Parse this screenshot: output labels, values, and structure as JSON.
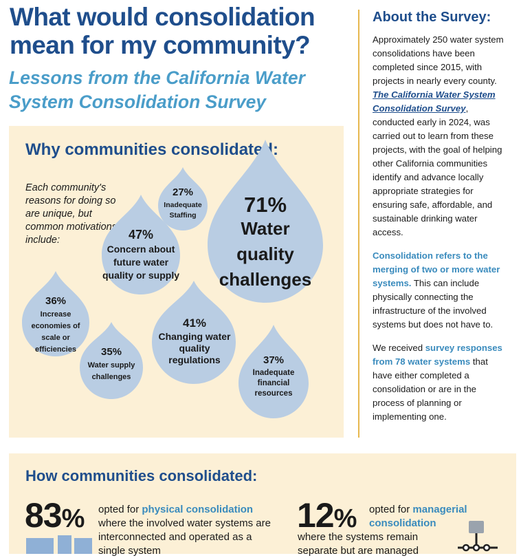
{
  "header": {
    "title": "What would consolidation mean for my community?",
    "subtitle": "Lessons from the California Water System Consolidation Survey"
  },
  "about": {
    "title": "About the Survey:",
    "p1_pre": "Approximately 250 water system consolidations have been completed since 2015, with projects in nearly every county.",
    "p1_link": "The California Water System Consolidation Survey",
    "p1_post": ", conducted early in 2024, was carried out to learn from these projects, with the goal of helping other California communities identify and advance locally appropriate strategies for ensuring safe, affordable, and sustainable drinking water access.",
    "p2_hl": "Consolidation refers to the merging of two or more water systems.",
    "p2_post": " This can include physically connecting the infrastructure of the involved systems but does not have to.",
    "p3_pre": "We received ",
    "p3_hl": "survey responses from 78 water systems",
    "p3_post": " that have either completed a consolidation or are in the process of planning or implementing one."
  },
  "why": {
    "title": "Why communities consolidated:",
    "intro": "Each community's reasons for doing so are unique, but common motivations include:",
    "drop_color": "#b9cde3"
  },
  "chart_data": {
    "type": "bubble",
    "title": "Why communities consolidated:",
    "unit": "percent of respondents",
    "items": [
      {
        "pct": "71%",
        "label": "Water quality challenges",
        "value": 71
      },
      {
        "pct": "47%",
        "label": "Concern about future water quality or supply",
        "value": 47
      },
      {
        "pct": "41%",
        "label": "Changing water quality regulations",
        "value": 41
      },
      {
        "pct": "37%",
        "label": "Inadequate financial resources",
        "value": 37
      },
      {
        "pct": "36%",
        "label": "Increase economies of scale or efficiencies",
        "value": 36
      },
      {
        "pct": "35%",
        "label": "Water supply challenges",
        "value": 35
      },
      {
        "pct": "27%",
        "label": "Inadequate Staffing",
        "value": 27
      }
    ]
  },
  "how": {
    "title": "How communities consolidated:",
    "physical": {
      "pct": "83",
      "sign": "%",
      "pre": "opted for ",
      "hl": "physical consolidation",
      "post": " where the involved water systems are interconnected and operated as a single system"
    },
    "managerial": {
      "pct": "12",
      "sign": "%",
      "pre": "opted for ",
      "hl": "managerial consolidation",
      "post": " where the systems remain separate but are managed"
    }
  }
}
